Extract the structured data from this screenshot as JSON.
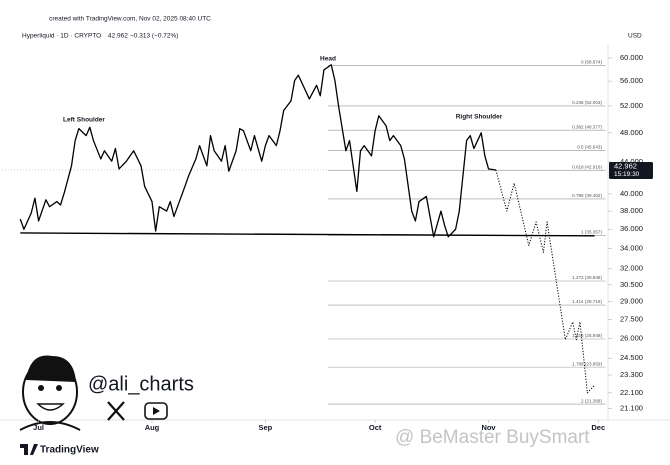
{
  "header": {
    "created": "created with TradingView.com, Nov 02, 2025 08:40 UTC"
  },
  "branding": {
    "handle": "@ali_charts",
    "logo": "TradingView",
    "watermark": "@ BeMaster BuySmart"
  },
  "chart_data": {
    "type": "line",
    "symbol": "Hyperliquid · 1D · CRYPTO",
    "change": "−0.313 (−0.72%)",
    "currency": "USD",
    "countdown": "15:19:30",
    "annotations": [
      "Head",
      "Left Shoulder",
      "Right Shoulder"
    ],
    "log_scale": true,
    "grid": false,
    "xlim": [
      -5,
      160
    ],
    "ylim": [
      20.5,
      62
    ],
    "xticks": [
      {
        "value": 5,
        "label": "Jul"
      },
      {
        "value": 36,
        "label": "Aug"
      },
      {
        "value": 67,
        "label": "Sep"
      },
      {
        "value": 97,
        "label": "Oct"
      },
      {
        "value": 128,
        "label": "Nov"
      },
      {
        "value": 158,
        "label": "Dec"
      }
    ],
    "yticks": [
      {
        "value": 60,
        "label": "60.000"
      },
      {
        "value": 56,
        "label": "56.000"
      },
      {
        "value": 52,
        "label": "52.000"
      },
      {
        "value": 48,
        "label": "48.000"
      },
      {
        "value": 44,
        "label": "44.000"
      },
      {
        "value": 40,
        "label": "40.000"
      },
      {
        "value": 38,
        "label": "38.000"
      },
      {
        "value": 36,
        "label": "36.000"
      },
      {
        "value": 34,
        "label": "34.000"
      },
      {
        "value": 32,
        "label": "32.000"
      },
      {
        "value": 30.5,
        "label": "30.500"
      },
      {
        "value": 29,
        "label": "29.000"
      },
      {
        "value": 27.5,
        "label": "27.500"
      },
      {
        "value": 26,
        "label": "26.000"
      },
      {
        "value": 24.5,
        "label": "24.500"
      },
      {
        "value": 23.3,
        "label": "23.300"
      },
      {
        "value": 22.1,
        "label": "22.100"
      },
      {
        "value": 21.1,
        "label": "21.100"
      }
    ],
    "fib_levels": [
      {
        "value": 58.674,
        "label": "0 (58.674)"
      },
      {
        "value": 52.003,
        "label": "0.236 (52.003)"
      },
      {
        "value": 48.377,
        "label": "0.382 (48.377)"
      },
      {
        "value": 45.543,
        "label": "0.5 (45.543)"
      },
      {
        "value": 42.918,
        "label": "0.618 (42.918)"
      },
      {
        "value": 39.402,
        "label": "0.786 (39.402)"
      },
      {
        "value": 35.357,
        "label": "1 (35.357)"
      },
      {
        "value": 30.848,
        "label": "1.272 (30.848)"
      },
      {
        "value": 28.715,
        "label": "1.414 (28.715)"
      },
      {
        "value": 25.948,
        "label": "1.618 (25.948)"
      },
      {
        "value": 23.859,
        "label": "1.786 (23.859)"
      },
      {
        "value": 21.368,
        "label": "2 (21.368)"
      }
    ],
    "neckline": {
      "x": [
        0,
        157
      ],
      "values": [
        35.6,
        35.3
      ]
    },
    "series": [
      {
        "color": "#000000",
        "style": "solid",
        "x": [
          0,
          1,
          3,
          4,
          5,
          7,
          8,
          10,
          11,
          12,
          14,
          15,
          16,
          18,
          19,
          20,
          22,
          23,
          25,
          26,
          27,
          29,
          30,
          31,
          33,
          34,
          36,
          37,
          38,
          40,
          41,
          42,
          44,
          45,
          46,
          48,
          49,
          51,
          52,
          53,
          55,
          56,
          57,
          59,
          60,
          61,
          63,
          64,
          66,
          67,
          68,
          70,
          71,
          72,
          74,
          75,
          76,
          78,
          79,
          81,
          82,
          83,
          85,
          86,
          87,
          89,
          90,
          92,
          93,
          94,
          96,
          97,
          98,
          100,
          101,
          102,
          104,
          105,
          107,
          108,
          109,
          111,
          112,
          113,
          115,
          116,
          117,
          119,
          120,
          122,
          123,
          124,
          126,
          127,
          128,
          130
        ],
        "values": [
          37.1,
          36.0,
          37.8,
          39.5,
          36.9,
          39.3,
          38.5,
          39.1,
          38.7,
          40.1,
          43.5,
          46.9,
          48.6,
          47.6,
          48.8,
          46.9,
          44.4,
          45.5,
          44.1,
          45.8,
          43.1,
          44.1,
          44.8,
          45.5,
          43.5,
          40.9,
          39.1,
          35.8,
          38.5,
          38.0,
          39.1,
          37.4,
          39.7,
          40.9,
          42.2,
          44.4,
          46.2,
          43.5,
          47.6,
          45.5,
          44.1,
          46.2,
          42.8,
          45.5,
          48.6,
          48.3,
          45.5,
          47.6,
          44.1,
          46.2,
          47.6,
          46.2,
          48.3,
          51.3,
          52.8,
          56.1,
          57.0,
          54.4,
          53.1,
          55.3,
          53.6,
          57.9,
          58.8,
          56.1,
          52.0,
          45.5,
          46.9,
          40.3,
          45.5,
          46.2,
          44.8,
          48.3,
          50.5,
          49.0,
          46.9,
          47.6,
          46.2,
          44.4,
          38.0,
          36.9,
          39.1,
          39.7,
          37.4,
          35.2,
          38.0,
          36.4,
          35.2,
          36.0,
          38.0,
          46.9,
          47.6,
          45.8,
          48.0,
          44.8,
          43.1,
          42.962
        ]
      },
      {
        "color": "#000000",
        "style": "dotted",
        "x": [
          130,
          133,
          135,
          139,
          141,
          143,
          144,
          149,
          151,
          152,
          153,
          155,
          157
        ],
        "values": [
          42.962,
          38.0,
          41.3,
          34.3,
          36.8,
          33.6,
          36.8,
          25.9,
          27.3,
          25.9,
          27.3,
          22.1,
          22.6
        ]
      }
    ]
  }
}
